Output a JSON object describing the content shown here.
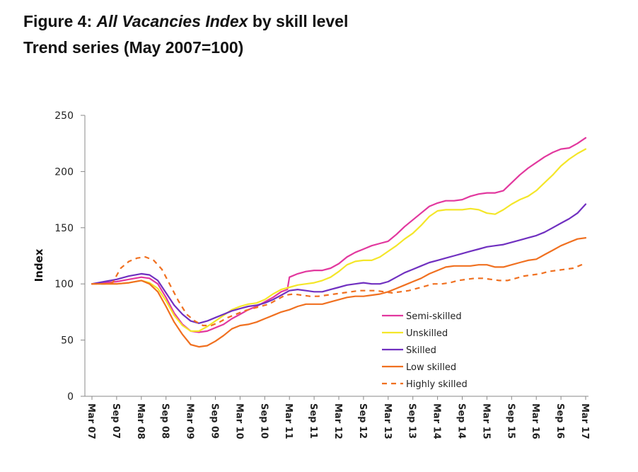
{
  "title": {
    "prefix": "Figure 4: ",
    "italic": "All Vacancies Index",
    "suffix": " by skill level",
    "line2": "Trend series (May 2007=100)"
  },
  "chart_data": {
    "type": "line",
    "title": "Figure 4: All Vacancies Index by skill level",
    "subtitle": "Trend series (May 2007=100)",
    "xlabel": "",
    "ylabel": "Index",
    "ylim": [
      0,
      250
    ],
    "yticks": [
      0,
      50,
      100,
      150,
      200,
      250
    ],
    "xlim": [
      0,
      120
    ],
    "xticks": [
      {
        "label": "Mar 07",
        "x": 0
      },
      {
        "label": "Sep 07",
        "x": 6
      },
      {
        "label": "Mar 08",
        "x": 12
      },
      {
        "label": "Sep 08",
        "x": 18
      },
      {
        "label": "Mar 09",
        "x": 24
      },
      {
        "label": "Sep 09",
        "x": 30
      },
      {
        "label": "Mar 10",
        "x": 36
      },
      {
        "label": "Sep 10",
        "x": 42
      },
      {
        "label": "Mar 11",
        "x": 48
      },
      {
        "label": "Sep 11",
        "x": 54
      },
      {
        "label": "Mar 12",
        "x": 60
      },
      {
        "label": "Sep 12",
        "x": 66
      },
      {
        "label": "Mar 13",
        "x": 72
      },
      {
        "label": "Sep 13",
        "x": 78
      },
      {
        "label": "Mar 14",
        "x": 84
      },
      {
        "label": "Sep 14",
        "x": 90
      },
      {
        "label": "Mar 15",
        "x": 96
      },
      {
        "label": "Sep 15",
        "x": 102
      },
      {
        "label": "Mar 16",
        "x": 108
      },
      {
        "label": "Sep 16",
        "x": 114
      },
      {
        "label": "Mar 17",
        "x": 120
      }
    ],
    "grid": false,
    "legend_position": "bottom-right",
    "series": [
      {
        "name": "Semi-skilled",
        "color": "#E2389E",
        "dash": false,
        "points": [
          [
            0,
            100
          ],
          [
            3,
            101
          ],
          [
            6,
            102
          ],
          [
            9,
            104
          ],
          [
            12,
            106
          ],
          [
            14,
            105
          ],
          [
            16,
            100
          ],
          [
            18,
            88
          ],
          [
            20,
            74
          ],
          [
            22,
            64
          ],
          [
            24,
            58
          ],
          [
            26,
            57
          ],
          [
            28,
            58
          ],
          [
            30,
            61
          ],
          [
            32,
            64
          ],
          [
            34,
            69
          ],
          [
            36,
            73
          ],
          [
            38,
            77
          ],
          [
            40,
            80
          ],
          [
            42,
            84
          ],
          [
            44,
            88
          ],
          [
            46,
            93
          ],
          [
            47.5,
            95
          ],
          [
            48,
            106
          ],
          [
            50,
            109
          ],
          [
            52,
            111
          ],
          [
            54,
            112
          ],
          [
            56,
            112
          ],
          [
            58,
            114
          ],
          [
            60,
            118
          ],
          [
            62,
            124
          ],
          [
            64,
            128
          ],
          [
            66,
            131
          ],
          [
            68,
            134
          ],
          [
            70,
            136
          ],
          [
            72,
            138
          ],
          [
            74,
            144
          ],
          [
            76,
            151
          ],
          [
            78,
            157
          ],
          [
            80,
            163
          ],
          [
            82,
            169
          ],
          [
            84,
            172
          ],
          [
            86,
            174
          ],
          [
            88,
            174
          ],
          [
            90,
            175
          ],
          [
            92,
            178
          ],
          [
            94,
            180
          ],
          [
            96,
            181
          ],
          [
            98,
            181
          ],
          [
            100,
            183
          ],
          [
            102,
            190
          ],
          [
            104,
            197
          ],
          [
            106,
            203
          ],
          [
            108,
            208
          ],
          [
            110,
            213
          ],
          [
            112,
            217
          ],
          [
            114,
            220
          ],
          [
            116,
            221
          ],
          [
            118,
            225
          ],
          [
            120,
            230
          ]
        ]
      },
      {
        "name": "Unskilled",
        "color": "#F4E629",
        "dash": false,
        "points": [
          [
            0,
            100
          ],
          [
            3,
            100
          ],
          [
            6,
            100
          ],
          [
            9,
            101
          ],
          [
            12,
            103
          ],
          [
            14,
            101
          ],
          [
            16,
            96
          ],
          [
            18,
            85
          ],
          [
            20,
            72
          ],
          [
            22,
            63
          ],
          [
            24,
            58
          ],
          [
            26,
            58
          ],
          [
            28,
            62
          ],
          [
            30,
            67
          ],
          [
            32,
            72
          ],
          [
            34,
            77
          ],
          [
            36,
            80
          ],
          [
            38,
            82
          ],
          [
            40,
            83
          ],
          [
            42,
            86
          ],
          [
            44,
            91
          ],
          [
            46,
            95
          ],
          [
            48,
            97
          ],
          [
            50,
            99
          ],
          [
            52,
            100
          ],
          [
            54,
            101
          ],
          [
            56,
            103
          ],
          [
            58,
            106
          ],
          [
            60,
            111
          ],
          [
            62,
            117
          ],
          [
            64,
            120
          ],
          [
            66,
            121
          ],
          [
            68,
            121
          ],
          [
            70,
            124
          ],
          [
            72,
            129
          ],
          [
            74,
            134
          ],
          [
            76,
            140
          ],
          [
            78,
            145
          ],
          [
            80,
            152
          ],
          [
            82,
            160
          ],
          [
            84,
            165
          ],
          [
            86,
            166
          ],
          [
            88,
            166
          ],
          [
            90,
            166
          ],
          [
            92,
            167
          ],
          [
            94,
            166
          ],
          [
            96,
            163
          ],
          [
            98,
            162
          ],
          [
            100,
            166
          ],
          [
            102,
            171
          ],
          [
            104,
            175
          ],
          [
            106,
            178
          ],
          [
            108,
            183
          ],
          [
            110,
            190
          ],
          [
            112,
            197
          ],
          [
            114,
            205
          ],
          [
            116,
            211
          ],
          [
            118,
            216
          ],
          [
            120,
            220
          ]
        ]
      },
      {
        "name": "Skilled",
        "color": "#7030C0",
        "dash": false,
        "points": [
          [
            0,
            100
          ],
          [
            3,
            102
          ],
          [
            6,
            104
          ],
          [
            9,
            107
          ],
          [
            12,
            109
          ],
          [
            14,
            108
          ],
          [
            16,
            103
          ],
          [
            18,
            92
          ],
          [
            20,
            81
          ],
          [
            22,
            73
          ],
          [
            24,
            67
          ],
          [
            26,
            65
          ],
          [
            28,
            67
          ],
          [
            30,
            70
          ],
          [
            32,
            73
          ],
          [
            34,
            76
          ],
          [
            36,
            78
          ],
          [
            38,
            80
          ],
          [
            40,
            81
          ],
          [
            42,
            83
          ],
          [
            44,
            86
          ],
          [
            46,
            90
          ],
          [
            48,
            94
          ],
          [
            50,
            95
          ],
          [
            52,
            94
          ],
          [
            54,
            93
          ],
          [
            56,
            93
          ],
          [
            58,
            95
          ],
          [
            60,
            97
          ],
          [
            62,
            99
          ],
          [
            64,
            100
          ],
          [
            66,
            101
          ],
          [
            68,
            100
          ],
          [
            70,
            100
          ],
          [
            72,
            102
          ],
          [
            74,
            106
          ],
          [
            76,
            110
          ],
          [
            78,
            113
          ],
          [
            80,
            116
          ],
          [
            82,
            119
          ],
          [
            84,
            121
          ],
          [
            86,
            123
          ],
          [
            88,
            125
          ],
          [
            90,
            127
          ],
          [
            92,
            129
          ],
          [
            94,
            131
          ],
          [
            96,
            133
          ],
          [
            98,
            134
          ],
          [
            100,
            135
          ],
          [
            102,
            137
          ],
          [
            104,
            139
          ],
          [
            106,
            141
          ],
          [
            108,
            143
          ],
          [
            110,
            146
          ],
          [
            112,
            150
          ],
          [
            114,
            154
          ],
          [
            116,
            158
          ],
          [
            118,
            163
          ],
          [
            120,
            171
          ]
        ]
      },
      {
        "name": "Low skilled",
        "color": "#F07020",
        "dash": false,
        "points": [
          [
            0,
            100
          ],
          [
            3,
            100
          ],
          [
            6,
            100
          ],
          [
            9,
            101
          ],
          [
            12,
            103
          ],
          [
            14,
            100
          ],
          [
            16,
            93
          ],
          [
            18,
            80
          ],
          [
            20,
            66
          ],
          [
            22,
            55
          ],
          [
            24,
            46
          ],
          [
            26,
            44
          ],
          [
            28,
            45
          ],
          [
            30,
            49
          ],
          [
            32,
            54
          ],
          [
            34,
            60
          ],
          [
            36,
            63
          ],
          [
            38,
            64
          ],
          [
            40,
            66
          ],
          [
            42,
            69
          ],
          [
            44,
            72
          ],
          [
            46,
            75
          ],
          [
            48,
            77
          ],
          [
            50,
            80
          ],
          [
            52,
            82
          ],
          [
            54,
            82
          ],
          [
            56,
            82
          ],
          [
            58,
            84
          ],
          [
            60,
            86
          ],
          [
            62,
            88
          ],
          [
            64,
            89
          ],
          [
            66,
            89
          ],
          [
            68,
            90
          ],
          [
            70,
            91
          ],
          [
            72,
            93
          ],
          [
            74,
            96
          ],
          [
            76,
            99
          ],
          [
            78,
            102
          ],
          [
            80,
            105
          ],
          [
            82,
            109
          ],
          [
            84,
            112
          ],
          [
            86,
            115
          ],
          [
            88,
            116
          ],
          [
            90,
            116
          ],
          [
            92,
            116
          ],
          [
            94,
            117
          ],
          [
            96,
            117
          ],
          [
            98,
            115
          ],
          [
            100,
            115
          ],
          [
            102,
            117
          ],
          [
            104,
            119
          ],
          [
            106,
            121
          ],
          [
            108,
            122
          ],
          [
            110,
            126
          ],
          [
            112,
            130
          ],
          [
            114,
            134
          ],
          [
            116,
            137
          ],
          [
            118,
            140
          ],
          [
            120,
            141
          ]
        ]
      },
      {
        "name": "Highly skilled",
        "color": "#F07020",
        "dash": true,
        "points": [
          [
            0,
            100
          ],
          [
            3,
            100
          ],
          [
            5,
            101
          ],
          [
            7,
            114
          ],
          [
            9,
            120
          ],
          [
            11,
            123
          ],
          [
            13,
            124
          ],
          [
            15,
            121
          ],
          [
            17,
            113
          ],
          [
            19,
            99
          ],
          [
            21,
            85
          ],
          [
            23,
            73
          ],
          [
            25,
            67
          ],
          [
            27,
            63
          ],
          [
            29,
            63
          ],
          [
            31,
            66
          ],
          [
            33,
            70
          ],
          [
            35,
            73
          ],
          [
            37,
            76
          ],
          [
            39,
            78
          ],
          [
            41,
            80
          ],
          [
            43,
            82
          ],
          [
            45,
            86
          ],
          [
            47,
            90
          ],
          [
            49,
            91
          ],
          [
            51,
            90
          ],
          [
            53,
            89
          ],
          [
            55,
            89
          ],
          [
            57,
            90
          ],
          [
            59,
            91
          ],
          [
            61,
            92
          ],
          [
            63,
            93
          ],
          [
            65,
            94
          ],
          [
            67,
            94
          ],
          [
            69,
            94
          ],
          [
            71,
            93
          ],
          [
            73,
            92
          ],
          [
            75,
            93
          ],
          [
            77,
            94
          ],
          [
            79,
            96
          ],
          [
            81,
            98
          ],
          [
            83,
            100
          ],
          [
            85,
            100
          ],
          [
            87,
            101
          ],
          [
            89,
            103
          ],
          [
            91,
            104
          ],
          [
            93,
            105
          ],
          [
            95,
            105
          ],
          [
            97,
            104
          ],
          [
            99,
            103
          ],
          [
            101,
            103
          ],
          [
            103,
            105
          ],
          [
            105,
            107
          ],
          [
            107,
            108
          ],
          [
            109,
            109
          ],
          [
            111,
            111
          ],
          [
            113,
            112
          ],
          [
            115,
            113
          ],
          [
            117,
            114
          ],
          [
            119,
            117
          ],
          [
            120,
            119
          ]
        ]
      }
    ]
  }
}
